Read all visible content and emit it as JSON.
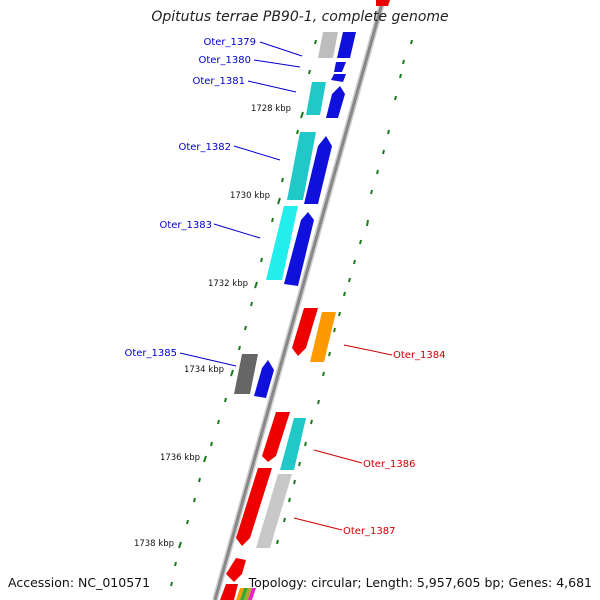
{
  "title": "Opitutus terrae PB90-1, complete genome",
  "footer": {
    "accession": "Accession: NC_010571",
    "summary": "Topology: circular; Length: 5,957,605 bp; Genes: 4,681"
  },
  "scale_ticks": [
    "1728 kbp",
    "1730 kbp",
    "1732 kbp",
    "1734 kbp",
    "1736 kbp",
    "1738 kbp"
  ],
  "gene_labels": {
    "forward": [
      "Oter_1379",
      "Oter_1380",
      "Oter_1381",
      "Oter_1382",
      "Oter_1383",
      "Oter_1385"
    ],
    "reverse": [
      "Oter_1384",
      "Oter_1386",
      "Oter_1387"
    ]
  },
  "colors": {
    "forward_label": "#0000cc",
    "reverse_label": "#cc0000",
    "backbone": "#888888",
    "tick_dash": "#1a7a1a"
  }
}
